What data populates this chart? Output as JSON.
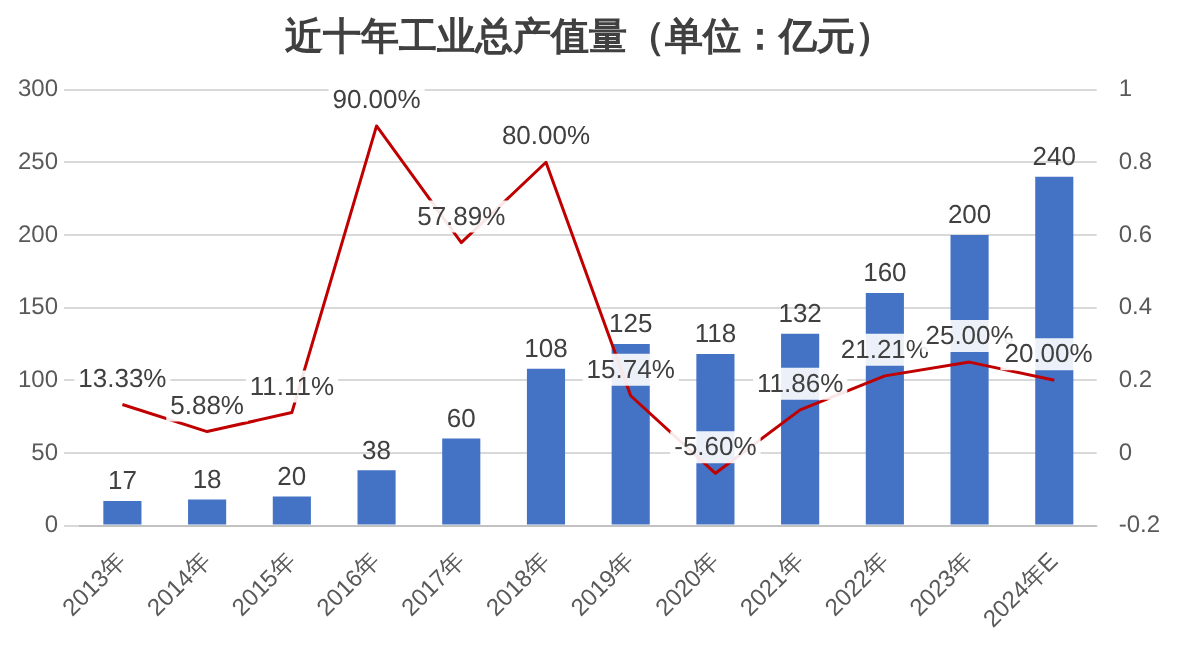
{
  "chart_data": {
    "type": "bar",
    "title": "近十年工业总产值量（单位：亿元）",
    "categories": [
      "2013年",
      "2014年",
      "2015年",
      "2016年",
      "2017年",
      "2018年",
      "2019年",
      "2020年",
      "2021年",
      "2022年",
      "2023年",
      "2024年E"
    ],
    "series": [
      {
        "color": "#4472c4",
        "values": [
          17,
          18,
          20,
          38,
          60,
          108,
          125,
          118,
          132,
          160,
          200,
          240
        ],
        "value_labels": [
          "17",
          "18",
          "20",
          "38",
          "60",
          "108",
          "125",
          "118",
          "132",
          "160",
          "200",
          "240"
        ]
      },
      {
        "type": "line",
        "axis": "y2",
        "color": "#c00000",
        "values": [
          0.1333,
          0.0588,
          0.1111,
          0.9,
          0.5789,
          0.8,
          0.1574,
          -0.056,
          0.1186,
          0.2121,
          0.25,
          0.2
        ],
        "value_labels": [
          "13.33%",
          "5.88%",
          "11.11%",
          "90.00%",
          "57.89%",
          "80.00%",
          "15.74%",
          "-5.60%",
          "11.86%",
          "21.21%",
          "25.00%",
          "20.00%"
        ]
      }
    ],
    "ylim": [
      0,
      300
    ],
    "yticks": [
      0,
      50,
      100,
      150,
      200,
      250,
      300
    ],
    "y2lim": [
      -0.2,
      1
    ],
    "y2ticks": [
      -0.2,
      0,
      0.2,
      0.4,
      0.6,
      0.8,
      1
    ],
    "grid": "y",
    "legend": false,
    "marker": "none"
  }
}
